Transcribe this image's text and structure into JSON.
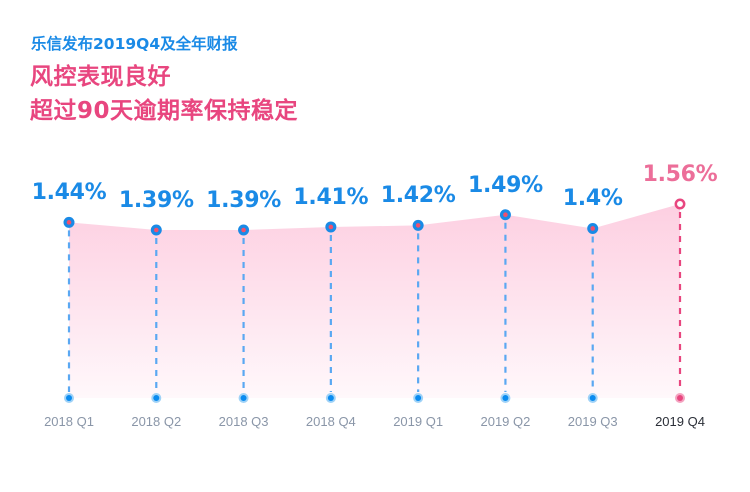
{
  "header": {
    "subtitle": "乐信发布2019Q4及全年财报",
    "title_line1": "风控表现良好",
    "title_line2": "超过90天逾期率保持稳定"
  },
  "colors": {
    "primary_blue": "#1a8ae6",
    "highlight_pink": "#e8467f",
    "area_fill": "#fdd0e2",
    "axis_label": "#8a96a8",
    "axis_label_highlight": "#2b2f38"
  },
  "chart_data": {
    "type": "area",
    "title": "超过90天逾期率",
    "categories": [
      "2018 Q1",
      "2018 Q2",
      "2018 Q3",
      "2018 Q4",
      "2019 Q1",
      "2019 Q2",
      "2019 Q3",
      "2019 Q4"
    ],
    "values": [
      1.44,
      1.39,
      1.39,
      1.41,
      1.42,
      1.49,
      1.4,
      1.56
    ],
    "labels": [
      "1.44%",
      "1.39%",
      "1.39%",
      "1.41%",
      "1.42%",
      "1.49%",
      "1.4%",
      "1.56%"
    ],
    "unit": "%",
    "highlight_index": 7,
    "xlabel": "",
    "ylabel": "",
    "grid": false,
    "legend": "none"
  },
  "labels": {
    "x": [
      "2018 Q1",
      "2018 Q2",
      "2018 Q3",
      "2018 Q4",
      "2019 Q1",
      "2019 Q2",
      "2019 Q3",
      "2019 Q4"
    ],
    "v": [
      "1.44%",
      "1.39%",
      "1.39%",
      "1.41%",
      "1.42%",
      "1.49%",
      "1.4%",
      "1.56%"
    ]
  }
}
